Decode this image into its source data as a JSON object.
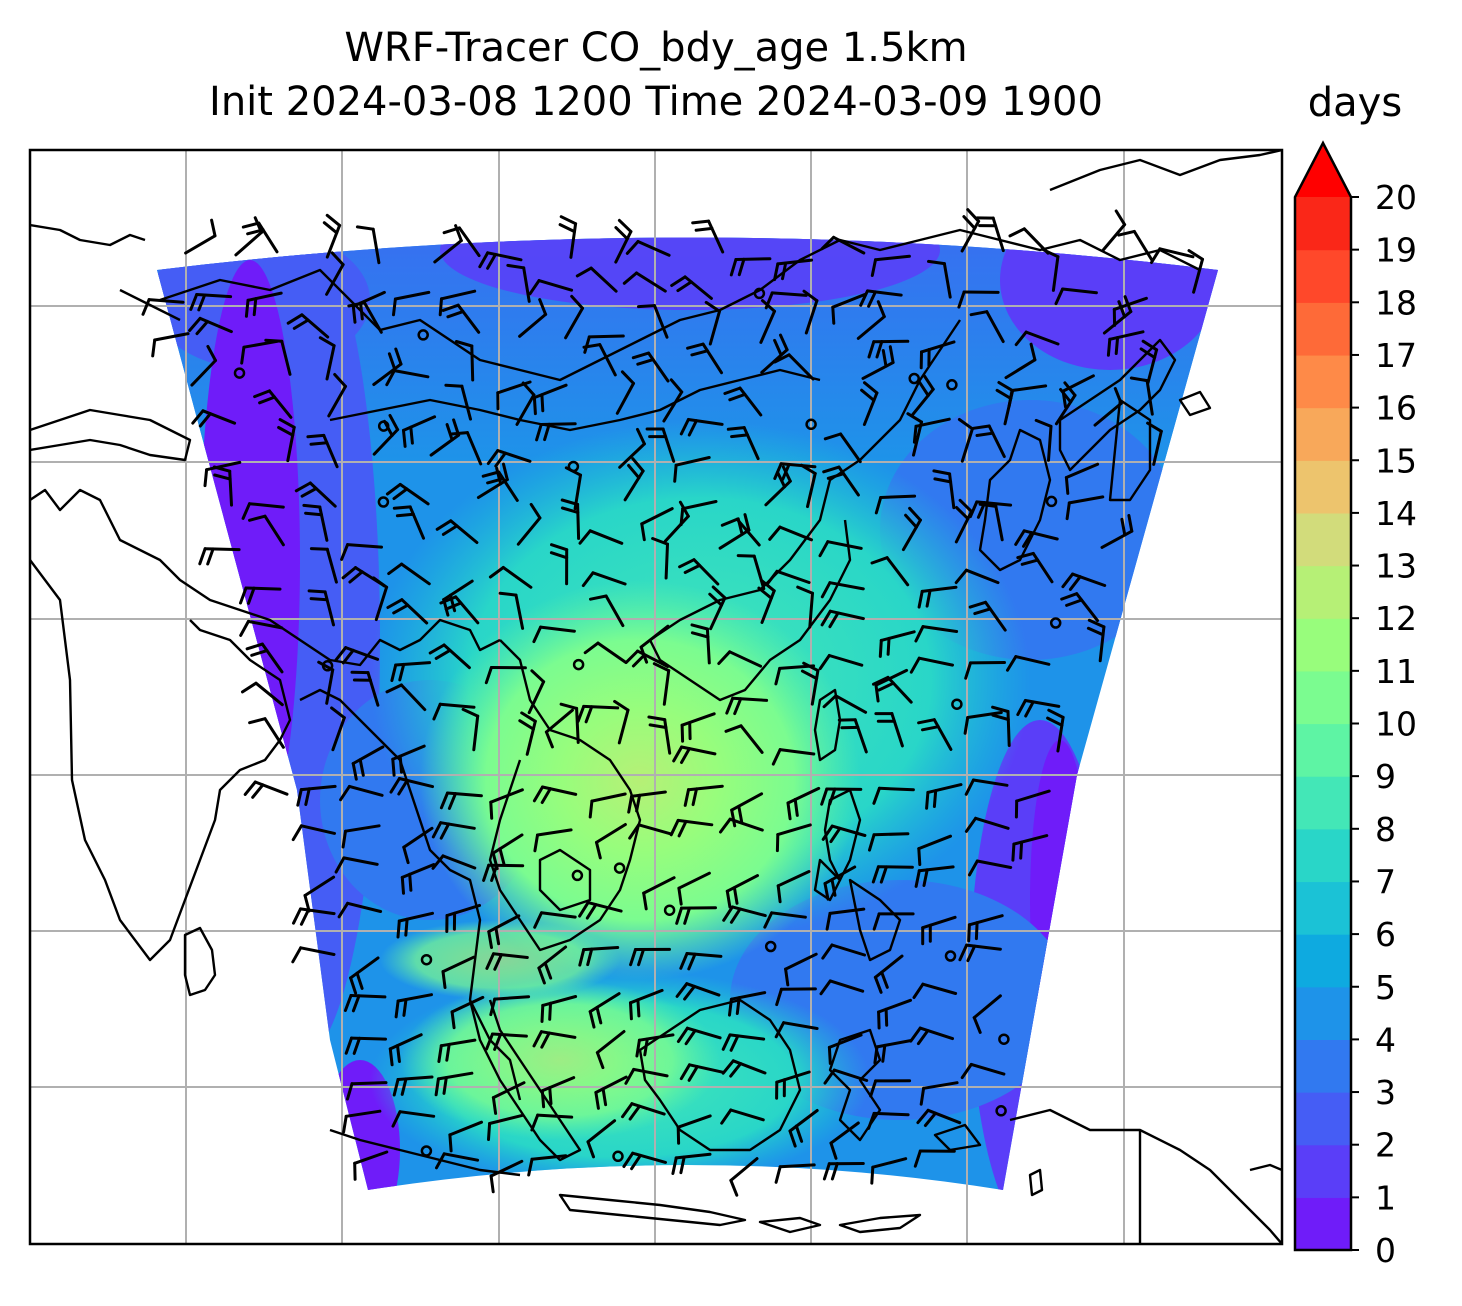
{
  "title": {
    "line1": "WRF-Tracer CO_bdy_age 1.5km",
    "line2": "Init 2024-03-08 1200 Time 2024-03-09 1900"
  },
  "colorbar": {
    "unit": "days",
    "min": 0,
    "max": 20,
    "step": 1,
    "extend": "max",
    "ticks": [
      "0",
      "1",
      "2",
      "3",
      "4",
      "5",
      "6",
      "7",
      "8",
      "9",
      "10",
      "11",
      "12",
      "13",
      "14",
      "15",
      "16",
      "17",
      "18",
      "19",
      "20"
    ],
    "colors": [
      "#6f1cf9",
      "#5a3ef8",
      "#455df5",
      "#3179f0",
      "#1e93e9",
      "#0eaae0",
      "#1bc2d6",
      "#29d6c8",
      "#43e7b7",
      "#5ef4a4",
      "#7bfc90",
      "#98fd7c",
      "#b6f076",
      "#d2dc7b",
      "#edc46d",
      "#f8a85a",
      "#fe8a48",
      "#fe6a38",
      "#ff482a",
      "#fa2718",
      "#ff1100"
    ],
    "extend_color": "#ff0000"
  },
  "map": {
    "features": [
      "coastlines",
      "gridlines",
      "wind-barbs",
      "tracer-age-field"
    ],
    "colors": {
      "land_background": "#ffffff",
      "gridline": "#b0b0b0",
      "coastline": "#000000"
    }
  }
}
